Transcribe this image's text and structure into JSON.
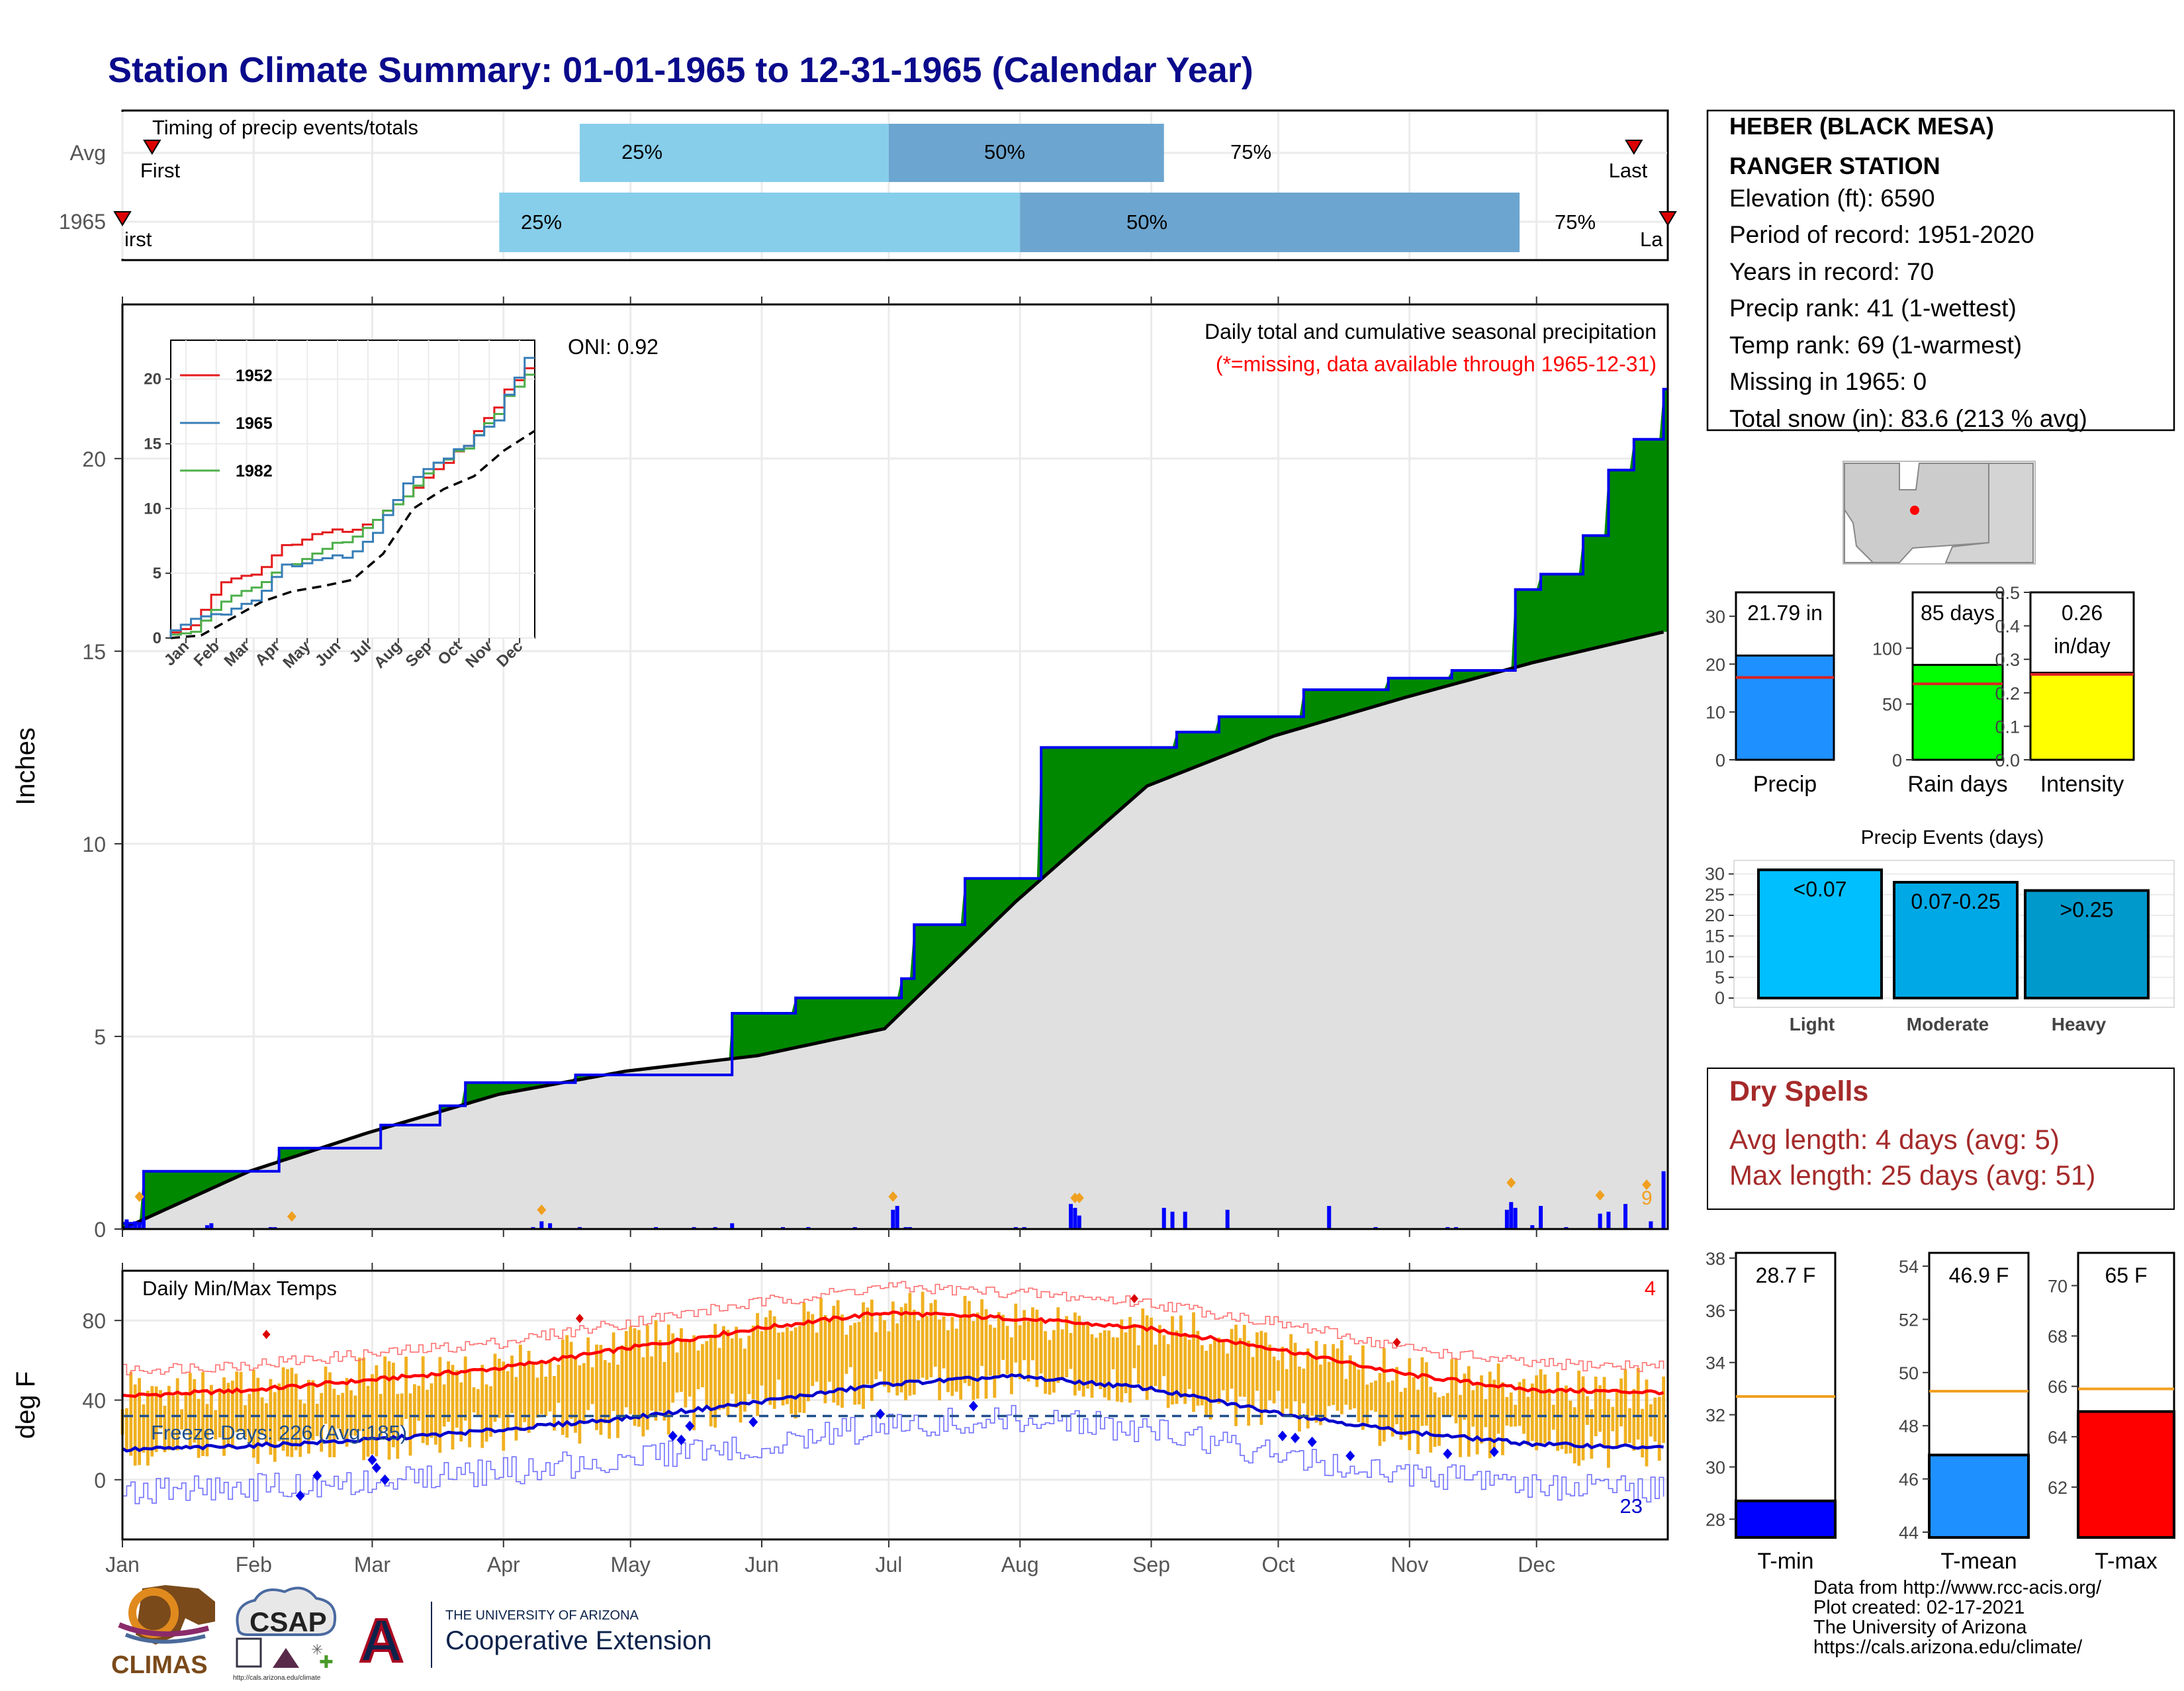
{
  "page_title": "Station Climate Summary: 01-01-1965 to 12-31-1965 (Calendar Year)",
  "colors": {
    "title": "#0a0a8c",
    "green_fill": "#008800",
    "avg_fill": "#e0e0e0",
    "precip_bar_blue": "#0000ff",
    "light_blue": "#87ceeb",
    "steel_blue": "#6ca5cf",
    "gold": "#f0b020",
    "red_line": "#ff0000",
    "blue_line": "#0000cc",
    "dry_spell": "#a52a2a"
  },
  "timing": {
    "label": "Timing of precip events/totals",
    "rows": [
      "Avg",
      "1965"
    ],
    "avg_row": {
      "first": "First",
      "last": "Last",
      "p25": "25%",
      "p50": "50%",
      "p75": "75%"
    },
    "year_row": {
      "first": "irst",
      "last": "La",
      "p25": "25%",
      "p50": "50%",
      "p75": "75%"
    }
  },
  "main_chart": {
    "title": "Daily total and cumulative seasonal precipitation",
    "note": "(*=missing, data available through 1965-12-31)",
    "oni": "ONI: 0.92",
    "ylabel": "Inches",
    "yticks": [
      "0",
      "5",
      "10",
      "15",
      "20"
    ],
    "corner_count": "9"
  },
  "inset": {
    "legend": [
      "1952",
      "1965",
      "1982"
    ],
    "yticks": [
      "0",
      "5",
      "10",
      "15",
      "20"
    ],
    "xticks": [
      "Jan",
      "Feb",
      "Mar",
      "Apr",
      "May",
      "Jun",
      "Jul",
      "Aug",
      "Sep",
      "Oct",
      "Nov",
      "Dec"
    ]
  },
  "temp_chart": {
    "title": "Daily Min/Max Temps",
    "ylabel": "deg F",
    "yticks": [
      "0",
      "40",
      "80"
    ],
    "freeze_label": "Freeze Days: 226 (Avg:185)",
    "top_count": "4",
    "bottom_count": "23"
  },
  "months": [
    "Jan",
    "Feb",
    "Mar",
    "Apr",
    "May",
    "Jun",
    "Jul",
    "Aug",
    "Sep",
    "Oct",
    "Nov",
    "Dec"
  ],
  "station": {
    "name_line1": "HEBER (BLACK MESA)",
    "name_line2": "RANGER STATION",
    "lines": [
      "Elevation (ft): 6590",
      "Period of record: 1951-2020",
      "Years in record: 70",
      "Precip rank: 41 (1-wettest)",
      "Temp rank: 69 (1-warmest)",
      "Missing in 1965: 0",
      "Total snow (in): 83.6 (213 % avg)"
    ]
  },
  "summary_bars": [
    {
      "label": "Precip",
      "value_text": "21.79 in",
      "value": 21.79,
      "avg": 17.2,
      "ymax": 35,
      "ticks": [
        "0",
        "10",
        "20",
        "30"
      ],
      "color": "#1e90ff"
    },
    {
      "label": "Rain days",
      "value_text": "85 days",
      "value": 85,
      "avg": 68,
      "ymax": 150,
      "ticks": [
        "0",
        "50",
        "100"
      ],
      "color": "#00ff00"
    },
    {
      "label": "Intensity",
      "value_text": "0.26",
      "value_text2": "in/day",
      "value": 0.26,
      "avg": 0.255,
      "ymax": 0.5,
      "ticks": [
        "0.0",
        "0.1",
        "0.2",
        "0.3",
        "0.4",
        "0.5"
      ],
      "color": "#ffff00"
    }
  ],
  "precip_events": {
    "title": "Precip Events (days)",
    "ticks": [
      "0",
      "5",
      "10",
      "15",
      "20",
      "25",
      "30"
    ],
    "bars": [
      {
        "category": "Light",
        "range": "<0.07",
        "value": 31,
        "color": "#00bfff"
      },
      {
        "category": "Moderate",
        "range": "0.07-0.25",
        "value": 28,
        "color": "#00a9e6"
      },
      {
        "category": "Heavy",
        "range": ">0.25",
        "value": 26,
        "color": "#0099cc"
      }
    ]
  },
  "dry_spells": {
    "title": "Dry Spells",
    "avg_line": "Avg length: 4 days (avg: 5)",
    "max_line": "Max length: 25 days (avg: 51)"
  },
  "temp_bars": [
    {
      "label": "T-min",
      "value_text": "28.7 F",
      "value": 28.7,
      "avg": 32.7,
      "ymin": 27.3,
      "ymax": 38.2,
      "ticks": [
        "28",
        "30",
        "32",
        "34",
        "36",
        "38"
      ],
      "color": "#0000ff"
    },
    {
      "label": "T-mean",
      "value_text": "46.9 F",
      "value": 46.9,
      "avg": 49.3,
      "ymin": 43.8,
      "ymax": 54.5,
      "ticks": [
        "44",
        "46",
        "48",
        "50",
        "52",
        "54"
      ],
      "color": "#1e90ff"
    },
    {
      "label": "T-max",
      "value_text": "65 F",
      "value": 65.0,
      "avg": 65.9,
      "ymin": 60.0,
      "ymax": 71.3,
      "ticks": [
        "62",
        "64",
        "66",
        "68",
        "70"
      ],
      "color": "#ff0000"
    }
  ],
  "logos": {
    "climas": "CLIMAS",
    "csap": "CSAP",
    "csap_url": "http://cals.arizona.edu/climate",
    "ua_letter": "A",
    "ua_small": "THE UNIVERSITY OF ARIZONA",
    "ua_big": "Cooperative Extension"
  },
  "footer": [
    "Data from http://www.rcc-acis.org/",
    "Plot created: 02-17-2021",
    "The University of Arizona",
    "https://cals.arizona.edu/climate/"
  ],
  "chart_data": [
    {
      "type": "area",
      "title": "Daily total and cumulative seasonal precipitation",
      "ylabel": "Inches",
      "ylim": [
        0,
        24
      ],
      "x_unit": "day of year 1965",
      "series": [
        {
          "name": "cumulative 1965",
          "x": [
            1,
            6,
            14,
            38,
            62,
            76,
            82,
            108,
            145,
            160,
            185,
            188,
            200,
            218,
            250,
            260,
            280,
            300,
            315,
            330,
            336,
            346,
            352,
            358,
            365
          ],
          "values": [
            0.15,
            1.5,
            1.5,
            2.1,
            2.7,
            3.2,
            3.8,
            4.0,
            5.6,
            6.0,
            6.5,
            7.9,
            9.1,
            12.5,
            12.9,
            13.3,
            14.0,
            14.3,
            14.5,
            16.6,
            17.0,
            18.0,
            19.7,
            20.5,
            21.8
          ]
        },
        {
          "x": [
            1,
            31,
            59,
            90,
            120,
            151,
            181,
            212,
            243,
            273,
            304,
            334,
            365
          ],
          "values": [
            0.0,
            1.5,
            2.5,
            3.5,
            4.1,
            4.5,
            5.2,
            8.5,
            11.5,
            12.8,
            13.8,
            14.7,
            15.5
          ]
        }
      ],
      "daily_bars": {
        "x": [
          2,
          3,
          4,
          5,
          6,
          21,
          22,
          36,
          37,
          98,
          100,
          102,
          109,
          127,
          136,
          141,
          145,
          157,
          163,
          174,
          183,
          184,
          186,
          187,
          212,
          214,
          225,
          226,
          227,
          247,
          249,
          252,
          262,
          286,
          297,
          314,
          316,
          328,
          329,
          330,
          334,
          336,
          342,
          350,
          352,
          356,
          362,
          365
        ],
        "values": [
          0.25,
          0.1,
          0.2,
          0.15,
          0.25,
          0.1,
          0.15,
          0.05,
          0.05,
          0.05,
          0.2,
          0.15,
          0.05,
          0.05,
          0.05,
          0.05,
          0.15,
          0.05,
          0.05,
          0.05,
          0.5,
          0.6,
          0.05,
          0.05,
          0.05,
          0.05,
          0.65,
          0.55,
          0.35,
          0.55,
          0.45,
          0.45,
          0.5,
          0.6,
          0.05,
          0.05,
          0.05,
          0.5,
          0.7,
          0.55,
          0.1,
          0.6,
          0.05,
          0.4,
          0.45,
          0.65,
          0.2,
          1.5
        ]
      }
    },
    {
      "type": "line",
      "title": "Daily Min/Max Temps",
      "ylabel": "deg F",
      "ylim": [
        -30,
        105
      ],
      "series": [
        {
          "x": [
            1,
            31,
            59,
            90,
            120,
            151,
            181,
            212,
            243,
            273,
            304,
            334,
            365
          ],
          "values": [
            42,
            45,
            50,
            56,
            66,
            76,
            84,
            81,
            76,
            66,
            53,
            45,
            44
          ]
        },
        {
          "x": [
            1,
            31,
            59,
            90,
            120,
            151,
            181,
            212,
            243,
            273,
            304,
            334,
            365
          ],
          "values": [
            15,
            17,
            20,
            25,
            31,
            39,
            48,
            52,
            46,
            34,
            24,
            18,
            16
          ]
        }
      ],
      "freeze_threshold": 32
    },
    {
      "type": "line",
      "title": "",
      "ylim": [
        0,
        23
      ],
      "x": [
        "Jan",
        "Feb",
        "Mar",
        "Apr",
        "May",
        "Jun",
        "Jul",
        "Aug",
        "Sep",
        "Oct",
        "Nov",
        "Dec"
      ],
      "series": [
        {
          "name": "1952",
          "values": [
            1,
            4.5,
            5,
            7,
            8,
            8.3,
            9,
            11,
            13,
            15,
            18,
            21
          ]
        },
        {
          "name": "1965",
          "values": [
            1.5,
            2,
            3,
            5.5,
            6,
            6.3,
            8,
            12,
            13.5,
            15,
            17,
            21.8
          ]
        },
        {
          "name": "1982",
          "values": [
            0.5,
            3,
            4,
            5.5,
            6.5,
            7.5,
            9,
            11,
            13.5,
            14.8,
            17.5,
            20.5
          ]
        },
        {
          "values": [
            0.2,
            1.5,
            2.8,
            3.6,
            4,
            4.5,
            6.5,
            10,
            11.5,
            12.5,
            14.5,
            16
          ]
        }
      ]
    },
    {
      "type": "bar",
      "title": "Precip Events (days)",
      "categories": [
        "Light",
        "Moderate",
        "Heavy"
      ],
      "values": [
        31,
        28,
        26
      ],
      "ylim": [
        0,
        32
      ]
    }
  ]
}
